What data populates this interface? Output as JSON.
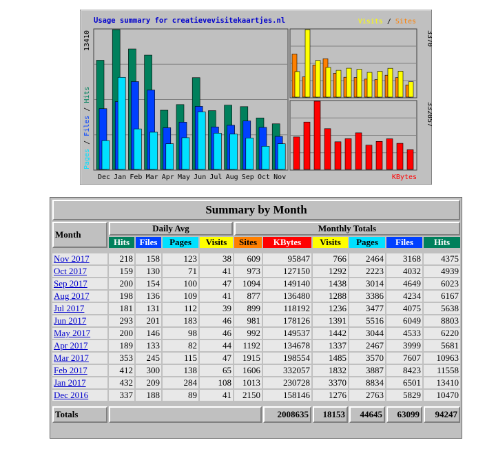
{
  "chart_data": [
    {
      "type": "bar",
      "title": "Usage summary for creatievevisitekaartjes.nl",
      "ylabel": "Pages / Files / Hits",
      "ymax_label": "13410",
      "ylim": [
        0,
        13410
      ],
      "categories": [
        "Dec",
        "Jan",
        "Feb",
        "Mar",
        "Apr",
        "May",
        "Jun",
        "Jul",
        "Aug",
        "Sep",
        "Oct",
        "Nov"
      ],
      "series": [
        {
          "name": "Hits",
          "color": "#00805c",
          "values": [
            10470,
            13410,
            11558,
            10963,
            5681,
            6220,
            8803,
            5638,
            6167,
            6023,
            4939,
            4375
          ]
        },
        {
          "name": "Files",
          "color": "#0040ff",
          "values": [
            5829,
            6501,
            8423,
            7607,
            3999,
            4533,
            6049,
            4075,
            4234,
            4649,
            4032,
            3168
          ]
        },
        {
          "name": "Pages",
          "color": "#00e0ff",
          "values": [
            2763,
            8834,
            3887,
            3570,
            2467,
            3044,
            5516,
            3477,
            3386,
            3014,
            2223,
            2464
          ]
        }
      ]
    },
    {
      "type": "bar",
      "ylabel": "Visits / Sites",
      "ymax_label": "3370",
      "ylim": [
        0,
        3370
      ],
      "categories": [
        "Dec",
        "Jan",
        "Feb",
        "Mar",
        "Apr",
        "May",
        "Jun",
        "Jul",
        "Aug",
        "Sep",
        "Oct",
        "Nov"
      ],
      "series": [
        {
          "name": "Sites",
          "color": "#ff8000",
          "values": [
            2150,
            1013,
            1606,
            1915,
            1192,
            992,
            981,
            899,
            877,
            1094,
            973,
            609
          ]
        },
        {
          "name": "Visits",
          "color": "#ffff00",
          "values": [
            1276,
            3370,
            1832,
            1485,
            1337,
            1442,
            1391,
            1236,
            1288,
            1438,
            1292,
            766
          ]
        }
      ]
    },
    {
      "type": "bar",
      "ylabel": "KBytes",
      "ymax_label": "332057",
      "ylim": [
        0,
        332057
      ],
      "categories": [
        "Dec",
        "Jan",
        "Feb",
        "Mar",
        "Apr",
        "May",
        "Jun",
        "Jul",
        "Aug",
        "Sep",
        "Oct",
        "Nov"
      ],
      "series": [
        {
          "name": "KBytes",
          "color": "#ff0000",
          "values": [
            158146,
            230728,
            332057,
            198554,
            134678,
            149537,
            178126,
            118192,
            136480,
            149140,
            127150,
            95847
          ]
        }
      ]
    }
  ],
  "legend": {
    "visits": "Visits",
    "sep": " / ",
    "sites": "Sites",
    "kbytes": "KBytes",
    "pages": "Pages",
    "files": "Files",
    "hits": "Hits"
  },
  "colors": {
    "hits": "#00805c",
    "files": "#0040ff",
    "pages": "#00e0ff",
    "visits": "#ffff00",
    "sites": "#ff8000",
    "kbytes": "#ff0000",
    "panel": "#c0c0c0",
    "plot": "#c0c0c0"
  },
  "table": {
    "caption": "Summary by Month",
    "month_header": "Month",
    "daily_avg_header": "Daily Avg",
    "monthly_totals_header": "Monthly Totals",
    "daily_cols": [
      "Hits",
      "Files",
      "Pages",
      "Visits"
    ],
    "monthly_cols": [
      "Sites",
      "KBytes",
      "Visits",
      "Pages",
      "Files",
      "Hits"
    ],
    "rows": [
      {
        "month": "Nov 2017",
        "d": [
          "218",
          "158",
          "123",
          "38"
        ],
        "m": [
          "609",
          "95847",
          "766",
          "2464",
          "3168",
          "4375"
        ]
      },
      {
        "month": "Oct 2017",
        "d": [
          "159",
          "130",
          "71",
          "41"
        ],
        "m": [
          "973",
          "127150",
          "1292",
          "2223",
          "4032",
          "4939"
        ]
      },
      {
        "month": "Sep 2017",
        "d": [
          "200",
          "154",
          "100",
          "47"
        ],
        "m": [
          "1094",
          "149140",
          "1438",
          "3014",
          "4649",
          "6023"
        ]
      },
      {
        "month": "Aug 2017",
        "d": [
          "198",
          "136",
          "109",
          "41"
        ],
        "m": [
          "877",
          "136480",
          "1288",
          "3386",
          "4234",
          "6167"
        ]
      },
      {
        "month": "Jul 2017",
        "d": [
          "181",
          "131",
          "112",
          "39"
        ],
        "m": [
          "899",
          "118192",
          "1236",
          "3477",
          "4075",
          "5638"
        ]
      },
      {
        "month": "Jun 2017",
        "d": [
          "293",
          "201",
          "183",
          "46"
        ],
        "m": [
          "981",
          "178126",
          "1391",
          "5516",
          "6049",
          "8803"
        ]
      },
      {
        "month": "May 2017",
        "d": [
          "200",
          "146",
          "98",
          "46"
        ],
        "m": [
          "992",
          "149537",
          "1442",
          "3044",
          "4533",
          "6220"
        ]
      },
      {
        "month": "Apr 2017",
        "d": [
          "189",
          "133",
          "82",
          "44"
        ],
        "m": [
          "1192",
          "134678",
          "1337",
          "2467",
          "3999",
          "5681"
        ]
      },
      {
        "month": "Mar 2017",
        "d": [
          "353",
          "245",
          "115",
          "47"
        ],
        "m": [
          "1915",
          "198554",
          "1485",
          "3570",
          "7607",
          "10963"
        ]
      },
      {
        "month": "Feb 2017",
        "d": [
          "412",
          "300",
          "138",
          "65"
        ],
        "m": [
          "1606",
          "332057",
          "1832",
          "3887",
          "8423",
          "11558"
        ]
      },
      {
        "month": "Jan 2017",
        "d": [
          "432",
          "209",
          "284",
          "108"
        ],
        "m": [
          "1013",
          "230728",
          "3370",
          "8834",
          "6501",
          "13410"
        ]
      },
      {
        "month": "Dec 2016",
        "d": [
          "337",
          "188",
          "89",
          "41"
        ],
        "m": [
          "2150",
          "158146",
          "1276",
          "2763",
          "5829",
          "10470"
        ]
      }
    ],
    "totals": {
      "label": "Totals",
      "kbytes": "2008635",
      "visits": "18153",
      "pages": "44645",
      "files": "63099",
      "hits": "94247"
    }
  }
}
